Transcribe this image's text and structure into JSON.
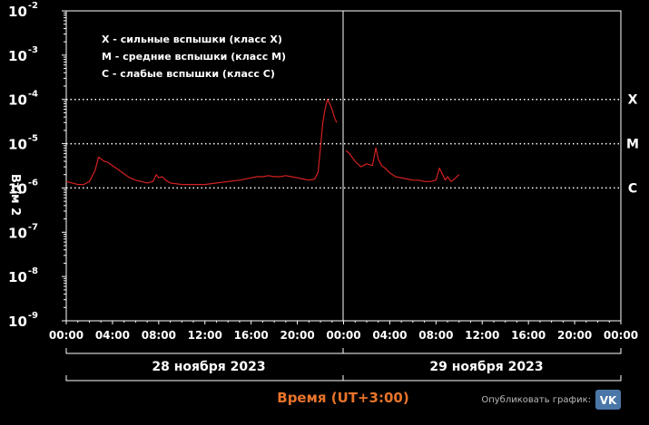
{
  "chart_data": {
    "type": "line",
    "title": "",
    "xlabel": "Время (UT+3:00)",
    "ylabel": "Вт/м 2",
    "y_scale": "log",
    "ylim": [
      1e-09,
      0.01
    ],
    "y_ticks": [
      {
        "base": "10",
        "exp": "-2"
      },
      {
        "base": "10",
        "exp": "-3"
      },
      {
        "base": "10",
        "exp": "-4"
      },
      {
        "base": "10",
        "exp": "-5"
      },
      {
        "base": "10",
        "exp": "-6"
      },
      {
        "base": "10",
        "exp": "-7"
      },
      {
        "base": "10",
        "exp": "-8"
      },
      {
        "base": "10",
        "exp": "-9"
      }
    ],
    "x_tick_labels": [
      "00:00",
      "04:00",
      "08:00",
      "12:00",
      "16:00",
      "20:00",
      "00:00",
      "04:00",
      "08:00",
      "12:00",
      "16:00",
      "20:00",
      "00:00"
    ],
    "day_labels": [
      "28 ноября 2023",
      "29 ноября 2023"
    ],
    "class_thresholds": [
      {
        "label": "X",
        "value": 0.0001
      },
      {
        "label": "M",
        "value": 1e-05
      },
      {
        "label": "C",
        "value": 1e-06
      }
    ],
    "legend": [
      "X - сильные вспышки (класс X)",
      "M - средние вспышки (класс M)",
      "C - слабые вспышки (класс C)"
    ],
    "legend_position": "top-left",
    "line_color": "#d42020",
    "threshold_color": "#ffffff",
    "series": [
      {
        "x_hours": [
          0,
          0.5,
          1,
          1.5,
          2,
          2.5,
          2.8,
          3,
          3.3,
          3.6,
          4,
          4.5,
          5,
          5.5,
          6,
          6.5,
          7,
          7.5,
          7.8,
          8,
          8.3,
          8.6,
          9,
          10,
          11,
          12,
          13,
          14,
          15,
          16,
          16.5,
          17,
          17.5,
          18,
          18.5,
          19,
          19.5,
          20,
          20.5,
          21,
          21.5,
          21.8,
          22,
          22.2,
          22.4,
          22.6,
          22.8,
          23,
          23.2,
          23.4
        ],
        "values": [
          1.4e-06,
          1.3e-06,
          1.2e-06,
          1.2e-06,
          1.4e-06,
          2.5e-06,
          5e-06,
          4.5e-06,
          4e-06,
          3.8e-06,
          3.2e-06,
          2.6e-06,
          2.1e-06,
          1.7e-06,
          1.5e-06,
          1.4e-06,
          1.3e-06,
          1.4e-06,
          2e-06,
          1.7e-06,
          1.8e-06,
          1.5e-06,
          1.3e-06,
          1.2e-06,
          1.2e-06,
          1.2e-06,
          1.3e-06,
          1.4e-06,
          1.5e-06,
          1.7e-06,
          1.8e-06,
          1.8e-06,
          1.9e-06,
          1.8e-06,
          1.8e-06,
          1.9e-06,
          1.8e-06,
          1.7e-06,
          1.6e-06,
          1.5e-06,
          1.6e-06,
          2.3e-06,
          8e-06,
          3e-05,
          6e-05,
          0.0001,
          8e-05,
          6e-05,
          4e-05,
          3e-05
        ]
      },
      {
        "x_hours": [
          24.2,
          24.5,
          25,
          25.5,
          26,
          26.5,
          26.8,
          27,
          27.3,
          27.6,
          28,
          28.5,
          29,
          29.5,
          30,
          30.5,
          31,
          31.5,
          32,
          32.3,
          32.5,
          32.8,
          33,
          33.3,
          33.6,
          34
        ],
        "values": [
          7e-06,
          6e-06,
          4e-06,
          3e-06,
          3.5e-06,
          3.2e-06,
          8e-06,
          4.5e-06,
          3.2e-06,
          2.8e-06,
          2.2e-06,
          1.8e-06,
          1.7e-06,
          1.6e-06,
          1.5e-06,
          1.5e-06,
          1.4e-06,
          1.4e-06,
          1.5e-06,
          2.8e-06,
          2.2e-06,
          1.5e-06,
          1.8e-06,
          1.4e-06,
          1.6e-06,
          2e-06
        ]
      }
    ]
  },
  "footer": {
    "publish_label": "Опубликовать график:",
    "vk_label": "VK"
  }
}
